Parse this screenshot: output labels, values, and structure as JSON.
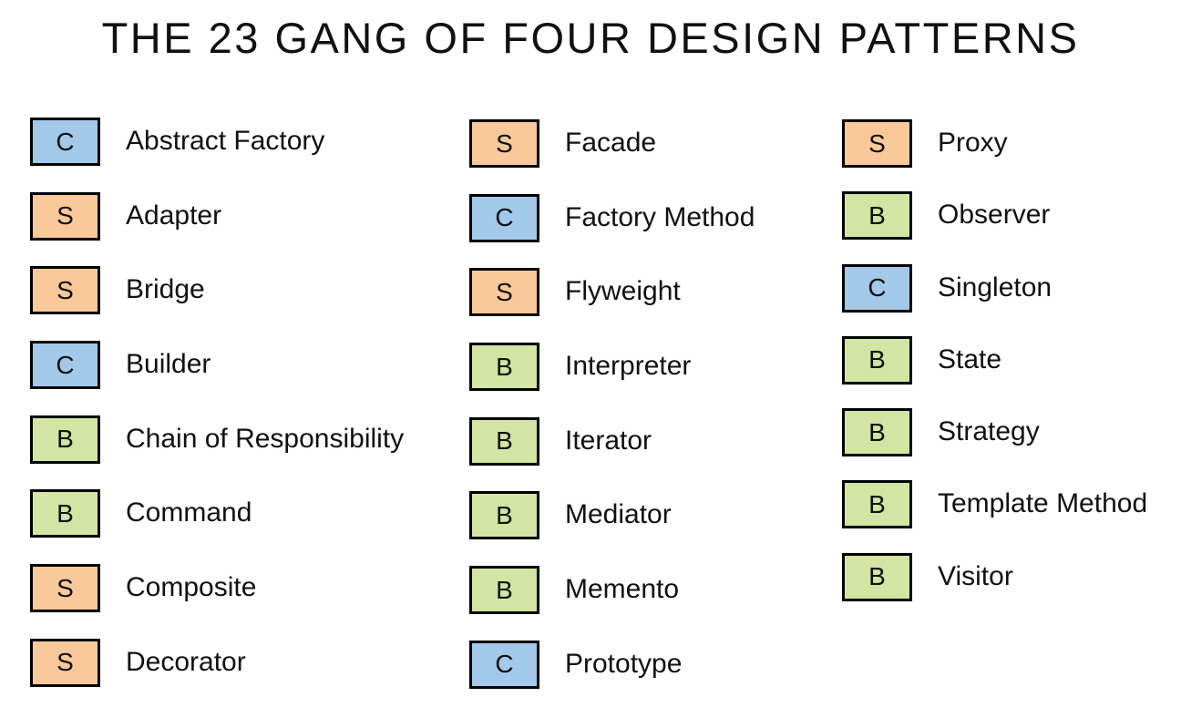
{
  "title": "THE 23 GANG OF FOUR DESIGN PATTERNS",
  "colors": {
    "C": "#a3c9ea",
    "S": "#f9c99a",
    "B": "#d2e5a2",
    "border": "#000000",
    "text": "#111111",
    "background": "#ffffff"
  },
  "columns": [
    {
      "items": [
        {
          "type": "C",
          "name": "Abstract Factory"
        },
        {
          "type": "S",
          "name": "Adapter"
        },
        {
          "type": "S",
          "name": "Bridge"
        },
        {
          "type": "C",
          "name": "Builder"
        },
        {
          "type": "B",
          "name": "Chain of Responsibility"
        },
        {
          "type": "B",
          "name": "Command"
        },
        {
          "type": "S",
          "name": "Composite"
        },
        {
          "type": "S",
          "name": "Decorator"
        }
      ]
    },
    {
      "items": [
        {
          "type": "S",
          "name": "Facade"
        },
        {
          "type": "C",
          "name": "Factory Method"
        },
        {
          "type": "S",
          "name": "Flyweight"
        },
        {
          "type": "B",
          "name": "Interpreter"
        },
        {
          "type": "B",
          "name": "Iterator"
        },
        {
          "type": "B",
          "name": "Mediator"
        },
        {
          "type": "B",
          "name": "Memento"
        },
        {
          "type": "C",
          "name": "Prototype"
        }
      ]
    },
    {
      "items": [
        {
          "type": "S",
          "name": "Proxy"
        },
        {
          "type": "B",
          "name": "Observer"
        },
        {
          "type": "C",
          "name": "Singleton"
        },
        {
          "type": "B",
          "name": "State"
        },
        {
          "type": "B",
          "name": "Strategy"
        },
        {
          "type": "B",
          "name": "Template Method"
        },
        {
          "type": "B",
          "name": "Visitor"
        }
      ]
    }
  ]
}
